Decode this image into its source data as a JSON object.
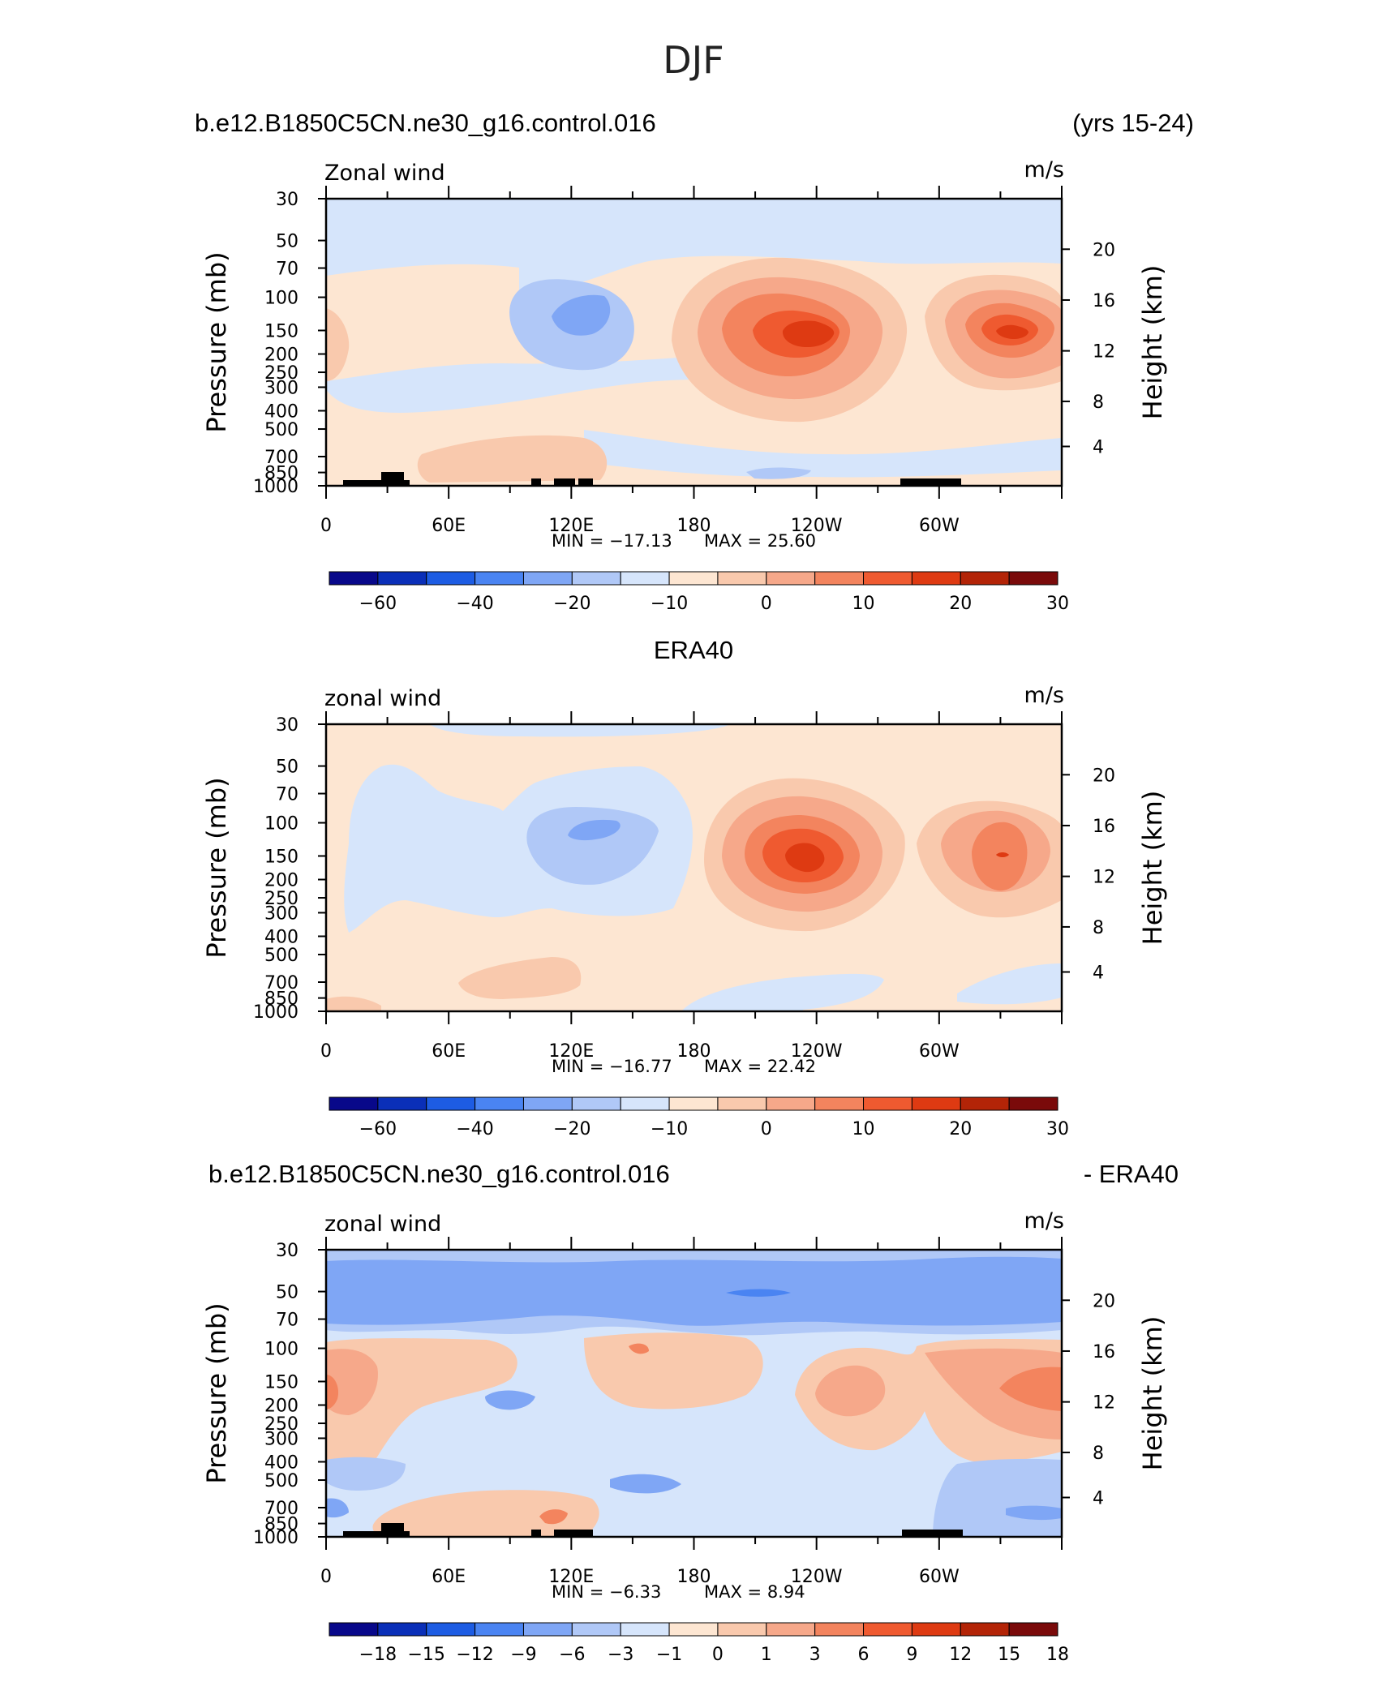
{
  "title": "DJF",
  "chart_data": [
    {
      "type": "heatmap",
      "panel": "model",
      "header_left": "b.e12.B1850C5CN.ne30_g16.control.016",
      "header_right": "(yrs 15-24)",
      "variable_label": "Zonal wind",
      "units": "m/s",
      "ylabel": "Pressure  (mb)",
      "y2label": "Height  (km)",
      "xticks": [
        "0",
        "60E",
        "120E",
        "180",
        "120W",
        "60W"
      ],
      "yticks": [
        "30",
        "50",
        "70",
        "100",
        "150",
        "200",
        "250",
        "300",
        "400",
        "500",
        "700",
        "850",
        "1000"
      ],
      "y2ticks": [
        "20",
        "16",
        "12",
        "8",
        "4"
      ],
      "min_text": "MIN =  −17.13",
      "max_text": "MAX =   25.60",
      "min": -17.13,
      "max": 25.6,
      "colorbar_labels": [
        "−60",
        "−40",
        "−20",
        "−10",
        "0",
        "10",
        "20",
        "30"
      ],
      "colorbar_colors": [
        "#08088a",
        "#0a2fb8",
        "#1d5ce3",
        "#4a84f2",
        "#7fa6f5",
        "#b0c8f7",
        "#d6e5fb",
        "#fde6d2",
        "#f9c9ad",
        "#f6a88a",
        "#f3845e",
        "#ef5a30",
        "#de3a12",
        "#b32407",
        "#7a0a0a"
      ]
    },
    {
      "type": "heatmap",
      "panel": "obs",
      "header_center": "ERA40",
      "variable_label": "zonal wind",
      "units": "m/s",
      "ylabel": "Pressure  (mb)",
      "y2label": "Height  (km)",
      "xticks": [
        "0",
        "60E",
        "120E",
        "180",
        "120W",
        "60W"
      ],
      "yticks": [
        "30",
        "50",
        "70",
        "100",
        "150",
        "200",
        "250",
        "300",
        "400",
        "500",
        "700",
        "850",
        "1000"
      ],
      "y2ticks": [
        "20",
        "16",
        "12",
        "8",
        "4"
      ],
      "min_text": "MIN =  −16.77",
      "max_text": "MAX =   22.42",
      "min": -16.77,
      "max": 22.42,
      "colorbar_labels": [
        "−60",
        "−40",
        "−20",
        "−10",
        "0",
        "10",
        "20",
        "30"
      ],
      "colorbar_colors": [
        "#08088a",
        "#0a2fb8",
        "#1d5ce3",
        "#4a84f2",
        "#7fa6f5",
        "#b0c8f7",
        "#d6e5fb",
        "#fde6d2",
        "#f9c9ad",
        "#f6a88a",
        "#f3845e",
        "#ef5a30",
        "#de3a12",
        "#b32407",
        "#7a0a0a"
      ]
    },
    {
      "type": "heatmap",
      "panel": "difference",
      "header_left": "b.e12.B1850C5CN.ne30_g16.control.016",
      "header_right": "- ERA40",
      "variable_label": "zonal wind",
      "units": "m/s",
      "ylabel": "Pressure  (mb)",
      "y2label": "Height  (km)",
      "xticks": [
        "0",
        "60E",
        "120E",
        "180",
        "120W",
        "60W"
      ],
      "yticks": [
        "30",
        "50",
        "70",
        "100",
        "150",
        "200",
        "250",
        "300",
        "400",
        "500",
        "700",
        "850",
        "1000"
      ],
      "y2ticks": [
        "20",
        "16",
        "12",
        "8",
        "4"
      ],
      "min_text": "MIN =   −6.33",
      "max_text": "MAX =    8.94",
      "min": -6.33,
      "max": 8.94,
      "colorbar_labels": [
        "−18",
        "−15",
        "−12",
        "−9",
        "−6",
        "−3",
        "−1",
        "0",
        "1",
        "3",
        "6",
        "9",
        "12",
        "15",
        "18"
      ],
      "colorbar_colors": [
        "#08088a",
        "#0a2fb8",
        "#1d5ce3",
        "#4a84f2",
        "#7fa6f5",
        "#b0c8f7",
        "#d6e5fb",
        "#fde6d2",
        "#f9c9ad",
        "#f6a88a",
        "#f3845e",
        "#ef5a30",
        "#de3a12",
        "#b32407",
        "#7a0a0a"
      ]
    }
  ]
}
